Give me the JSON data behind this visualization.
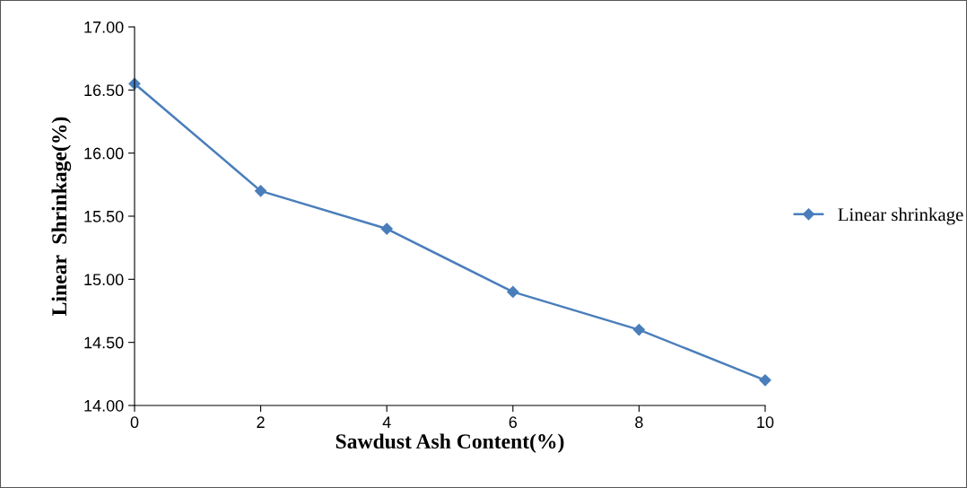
{
  "chart_data": {
    "type": "line",
    "xlabel": "Sawdust Ash Content(%)",
    "ylabel": "Linear  Shrinkage(%)",
    "x": [
      0,
      2,
      4,
      6,
      8,
      10
    ],
    "series": [
      {
        "name": "Linear shrinkage",
        "color": "#4a7ebb",
        "values": [
          16.55,
          15.7,
          15.4,
          14.9,
          14.6,
          14.2
        ]
      }
    ],
    "xlim": [
      0,
      10
    ],
    "xticks": [
      0,
      2,
      4,
      6,
      8,
      10
    ],
    "ylim": [
      14,
      17
    ],
    "yticks": [
      {
        "value": 14,
        "label": "14.00"
      },
      {
        "value": 14.5,
        "label": "14.50"
      },
      {
        "value": 15,
        "label": "15.00"
      },
      {
        "value": 15.5,
        "label": "15.50"
      },
      {
        "value": 16,
        "label": "16.00"
      },
      {
        "value": 16.5,
        "label": "16.50"
      },
      {
        "value": 17,
        "label": "17.00"
      }
    ],
    "marker": "diamond",
    "line_style": "solid",
    "grid": false,
    "legend": "right"
  }
}
